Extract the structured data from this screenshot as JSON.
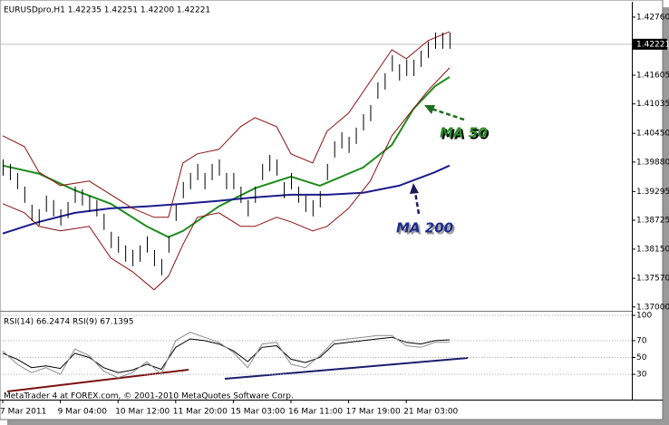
{
  "chart_data": [
    {
      "type": "ohlc",
      "title": "EURUSDpro,H1  1.42235 1.42251 1.42200 1.42221",
      "categories": [
        "7 Mar 2011",
        null,
        null,
        null,
        null,
        null,
        null,
        null,
        "9 Mar 04:00",
        null,
        null,
        null,
        null,
        null,
        null,
        null,
        "10 Mar 12:00",
        null,
        null,
        null,
        null,
        null,
        null,
        null,
        "11 Mar 20:00",
        null,
        null,
        null,
        null,
        null,
        null,
        null,
        "15 Mar 03:00",
        null,
        null,
        null,
        null,
        null,
        null,
        null,
        "16 Mar 11:00",
        null,
        null,
        null,
        null,
        null,
        null,
        null,
        "17 Mar 19:00",
        null,
        null,
        null,
        null,
        null,
        null,
        null,
        "21 Mar 03:00",
        null,
        null,
        null,
        null,
        null,
        null
      ],
      "color": "#000000",
      "high": [
        1.39934,
        1.39844,
        1.39664,
        1.39394,
        1.39034,
        1.38944,
        1.39214,
        1.39124,
        1.38944,
        1.39088,
        1.39394,
        1.3934,
        1.39214,
        1.39124,
        1.38854,
        1.38494,
        1.38404,
        1.38224,
        1.38134,
        1.38224,
        1.38404,
        1.38134,
        1.37954,
        1.38404,
        1.39034,
        1.39484,
        1.39664,
        1.39844,
        1.39664,
        1.39844,
        1.39934,
        1.39664,
        1.39664,
        1.39394,
        1.39124,
        1.39394,
        1.39844,
        1.40024,
        1.39934,
        1.39484,
        1.39664,
        1.39394,
        1.39214,
        1.39124,
        1.39304,
        1.39844,
        1.40294,
        1.40474,
        1.40384,
        1.40564,
        1.40834,
        1.41014,
        1.41464,
        1.41644,
        1.42004,
        1.41824,
        1.41914,
        1.41914,
        1.42094,
        1.42274,
        1.42454,
        1.42454,
        1.42454
      ],
      "low": [
        1.3961,
        1.3952,
        1.3934,
        1.3907,
        1.3871,
        1.3862,
        1.3889,
        1.388,
        1.3862,
        1.38764,
        1.3907,
        1.39016,
        1.3889,
        1.388,
        1.3853,
        1.3817,
        1.3808,
        1.379,
        1.3781,
        1.379,
        1.3808,
        1.3781,
        1.3763,
        1.3808,
        1.3871,
        1.3916,
        1.3934,
        1.3952,
        1.3934,
        1.3952,
        1.3961,
        1.3934,
        1.3934,
        1.3907,
        1.388,
        1.3907,
        1.3952,
        1.397,
        1.3961,
        1.3916,
        1.3934,
        1.3907,
        1.3889,
        1.388,
        1.3898,
        1.3952,
        1.3997,
        1.4015,
        1.4006,
        1.4024,
        1.4051,
        1.4069,
        1.4114,
        1.4132,
        1.4168,
        1.415,
        1.4159,
        1.4159,
        1.4177,
        1.4195,
        1.4213,
        1.4213,
        1.4213
      ],
      "overlays": [
        {
          "annotation": "MA 50",
          "color": "#1e8c1e",
          "x": [
            0,
            5,
            10,
            15,
            20,
            23,
            25,
            30,
            35,
            40,
            44,
            47,
            50,
            54,
            57,
            60,
            62
          ],
          "values": [
            1.3981,
            1.3965,
            1.3932,
            1.3905,
            1.386,
            1.3839,
            1.3851,
            1.39,
            1.3936,
            1.3959,
            1.3941,
            1.3959,
            1.3977,
            1.4022,
            1.4094,
            1.4139,
            1.4157
          ]
        },
        {
          "annotation": "MA 200",
          "color": "#1c1c8c",
          "x": [
            0,
            5,
            10,
            15,
            20,
            25,
            30,
            35,
            40,
            45,
            50,
            55,
            60,
            62
          ],
          "values": [
            1.3846,
            1.3869,
            1.3887,
            1.3896,
            1.39,
            1.3905,
            1.3911,
            1.3918,
            1.3923,
            1.3923,
            1.3927,
            1.3941,
            1.3968,
            1.3981
          ]
        },
        {
          "color": "#8b1010",
          "x": [
            0,
            3,
            5,
            8,
            12,
            15,
            18,
            21,
            23,
            25,
            27,
            30,
            33,
            35,
            38,
            40,
            43,
            45,
            48,
            51,
            54,
            56,
            59,
            62
          ],
          "values": [
            1.40402,
            1.40186,
            1.39682,
            1.39412,
            1.39502,
            1.39232,
            1.38962,
            1.38782,
            1.38782,
            1.39862,
            1.40042,
            1.40132,
            1.40582,
            1.40762,
            1.40582,
            1.40042,
            1.39862,
            1.40492,
            1.40852,
            1.41482,
            1.42112,
            1.41932,
            1.42292,
            1.42472
          ]
        },
        {
          "color": "#8b1010",
          "x": [
            0,
            3,
            5,
            8,
            12,
            15,
            18,
            21,
            23,
            25,
            27,
            30,
            33,
            35,
            38,
            40,
            43,
            45,
            48,
            51,
            54,
            56,
            59,
            62
          ],
          "values": [
            1.39052,
            1.38872,
            1.38602,
            1.38512,
            1.38602,
            1.37972,
            1.37702,
            1.37342,
            1.37612,
            1.38242,
            1.38782,
            1.38872,
            1.38602,
            1.38602,
            1.38782,
            1.38692,
            1.38512,
            1.38602,
            1.38962,
            1.39502,
            1.40402,
            1.40762,
            1.41302,
            1.41752
          ]
        }
      ],
      "last_price": {
        "value": 1.42221,
        "label": "1.42221"
      },
      "ylim": [
        1.3696,
        1.4301
      ],
      "yticks": [
        {
          "value": 1.4276,
          "label": "1.42760"
        },
        {
          "value": 1.41605,
          "label": "1.41605"
        },
        {
          "value": 1.41035,
          "label": "1.41035"
        },
        {
          "value": 1.4045,
          "label": "1.40450"
        },
        {
          "value": 1.3988,
          "label": "1.39880"
        },
        {
          "value": 1.39295,
          "label": "1.39295"
        },
        {
          "value": 1.38725,
          "label": "1.38725"
        },
        {
          "value": 1.3815,
          "label": "1.38150"
        },
        {
          "value": 1.3757,
          "label": "1.37570"
        },
        {
          "value": 1.37,
          "label": "1.37000"
        }
      ]
    },
    {
      "type": "line",
      "title": "RSI(14) 66.2474 RSI(9) 67.1395",
      "ylim": [
        0,
        100
      ],
      "yticks": [
        100,
        70,
        50,
        30
      ],
      "grid": true,
      "series": [
        {
          "color": "#000000",
          "x": [
            0,
            2,
            4,
            6,
            8,
            10,
            12,
            14,
            16,
            18,
            20,
            22,
            24,
            26,
            28,
            30,
            32,
            34,
            36,
            38,
            40,
            42,
            44,
            46,
            48,
            50,
            52,
            54,
            56,
            58,
            60,
            62
          ],
          "values": [
            55,
            48,
            38,
            40,
            37,
            55,
            50,
            38,
            32,
            35,
            42,
            36,
            62,
            72,
            70,
            66,
            58,
            45,
            62,
            64,
            48,
            44,
            50,
            66,
            68,
            70,
            72,
            74,
            68,
            66,
            70,
            71
          ]
        },
        {
          "color": "#8c8c8c",
          "x": [
            0,
            2,
            4,
            6,
            8,
            10,
            12,
            14,
            16,
            18,
            20,
            22,
            24,
            26,
            28,
            30,
            32,
            34,
            36,
            38,
            40,
            42,
            44,
            46,
            48,
            50,
            52,
            54,
            56,
            58,
            60,
            62
          ],
          "values": [
            58,
            42,
            32,
            38,
            30,
            60,
            52,
            34,
            26,
            32,
            45,
            30,
            70,
            80,
            74,
            68,
            56,
            38,
            66,
            68,
            42,
            38,
            52,
            70,
            72,
            74,
            76,
            76,
            64,
            62,
            68,
            68
          ]
        }
      ]
    }
  ],
  "footer": "MetaTrader 4 at FOREX.com, © 2001-2010 MetaQuotes Software Corp."
}
